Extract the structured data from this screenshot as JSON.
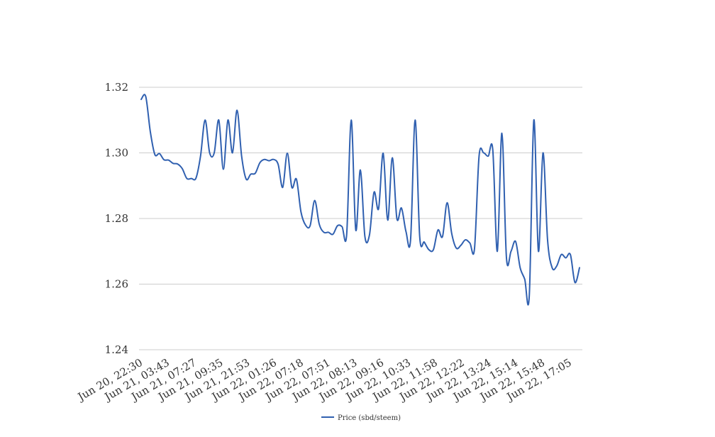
{
  "chart_data": {
    "type": "line",
    "title": "",
    "xlabel": "",
    "ylabel": "",
    "ylim": [
      1.24,
      1.32
    ],
    "y_ticks": [
      "1.24",
      "1.26",
      "1.28",
      "1.30",
      "1.32"
    ],
    "y_tick_values": [
      1.24,
      1.26,
      1.28,
      1.3,
      1.32
    ],
    "x_tick_labels": [
      "Jun 20, 22:30",
      "Jun 21, 03:43",
      "Jun 21, 07:27",
      "Jun 21, 09:35",
      "Jun 21, 21:53",
      "Jun 22, 01:26",
      "Jun 22, 07:18",
      "Jun 22, 07:51",
      "Jun 22, 08:13",
      "Jun 22, 09:16",
      "Jun 22, 10:33",
      "Jun 22, 11:58",
      "Jun 22, 12:22",
      "Jun 22, 13:24",
      "Jun 22, 15:14",
      "Jun 22, 15:48",
      "Jun 22, 17:05"
    ],
    "grid": true,
    "legend_position": "bottom",
    "series": [
      {
        "name": "Price (sbd/steem)",
        "color": "#3060b0",
        "values": [
          1.3163,
          1.3172,
          1.3065,
          1.2995,
          1.2998,
          1.2979,
          1.2978,
          1.2968,
          1.2966,
          1.2952,
          1.2922,
          1.2922,
          1.2923,
          1.299,
          1.31,
          1.3,
          1.3,
          1.31,
          1.295,
          1.31,
          1.3,
          1.313,
          1.299,
          1.292,
          1.2935,
          1.2938,
          1.297,
          1.298,
          1.2976,
          1.298,
          1.2965,
          1.2895,
          1.2999,
          1.2895,
          1.292,
          1.282,
          1.278,
          1.2778,
          1.2855,
          1.2783,
          1.2758,
          1.2758,
          1.2752,
          1.2778,
          1.2775,
          1.275,
          1.31,
          1.2765,
          1.2948,
          1.2745,
          1.275,
          1.288,
          1.283,
          1.2999,
          1.2795,
          1.2985,
          1.28,
          1.2832,
          1.276,
          1.2735,
          1.31,
          1.2745,
          1.2728,
          1.2705,
          1.2705,
          1.2765,
          1.2745,
          1.2848,
          1.2755,
          1.271,
          1.2718,
          1.2735,
          1.2725,
          1.2708,
          1.299,
          1.3,
          1.299,
          1.301,
          1.27,
          1.306,
          1.268,
          1.27,
          1.273,
          1.265,
          1.2615,
          1.2565,
          1.31,
          1.27,
          1.3,
          1.2735,
          1.265,
          1.2655,
          1.269,
          1.268,
          1.269,
          1.2605,
          1.265
        ]
      }
    ]
  }
}
